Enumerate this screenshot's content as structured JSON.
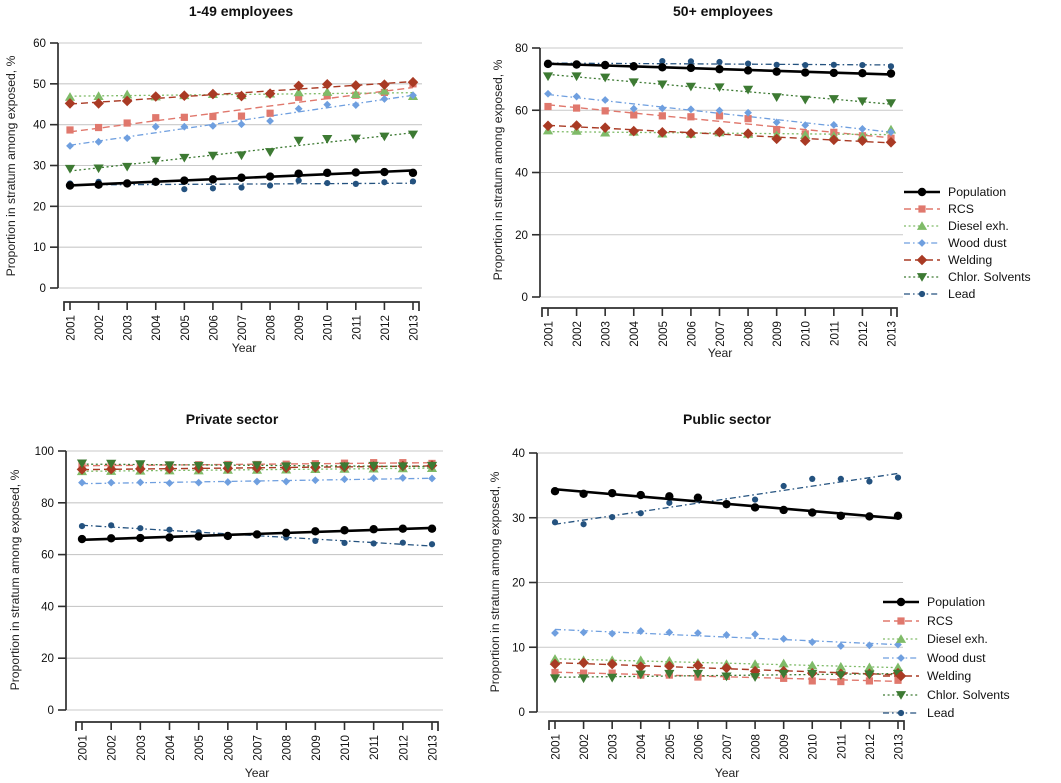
{
  "figure": {
    "ylabel": "Proportion in stratum among exposed, %",
    "xlabel": "Year",
    "colors": {
      "population": "#000000",
      "rcs": "#e0786d",
      "diesel": "#7fbb68",
      "wood_dust": "#6f9fdf",
      "welding": "#a93a24",
      "chlor_solvents": "#3d7a33",
      "lead": "#24527f",
      "gridline": "#c9c9c9",
      "axis": "#2e2e2e"
    },
    "series_styles": [
      {
        "name": "Population",
        "color": "#000000",
        "line": "solid",
        "marker": "circle-icon",
        "width": 2.6
      },
      {
        "name": "RCS",
        "color": "#e0786d",
        "line": "dashed",
        "marker": "square-icon",
        "width": 1.4
      },
      {
        "name": "Diesel exh.",
        "color": "#7fbb68",
        "line": "dotted",
        "marker": "triangle-up-icon",
        "width": 1.3
      },
      {
        "name": "Wood dust",
        "color": "#6f9fdf",
        "line": "dashdot",
        "marker": "small-diamond-icon",
        "width": 1.3
      },
      {
        "name": "Welding",
        "color": "#a93a24",
        "line": "dashed",
        "marker": "diamond-icon",
        "width": 1.4
      },
      {
        "name": "Chlor. Solvents",
        "color": "#3d7a33",
        "line": "dotted",
        "marker": "triangle-down-icon",
        "width": 1.3
      },
      {
        "name": "Lead",
        "color": "#24527f",
        "line": "dashdot",
        "marker": "small-circle-icon",
        "width": 1.3
      }
    ],
    "legend_items": [
      "Population",
      "RCS",
      "Diesel exh.",
      "Wood dust",
      "Welding",
      "Chlor. Solvents",
      "Lead"
    ]
  },
  "chart_data": [
    {
      "type": "line",
      "title": "1-49 employees",
      "xlabel": "Year",
      "ylabel": "Proportion in stratum among exposed, %",
      "ylim": [
        0,
        60
      ],
      "yticks": [
        0,
        10,
        20,
        30,
        40,
        50,
        60
      ],
      "x": [
        2001,
        2002,
        2003,
        2004,
        2005,
        2006,
        2007,
        2008,
        2009,
        2010,
        2011,
        2012,
        2013
      ],
      "grid": true,
      "legend_position": "none",
      "series": [
        {
          "name": "Population",
          "values": [
            25.1,
            25.3,
            25.6,
            26.0,
            26.3,
            26.6,
            27.0,
            27.3,
            28.0,
            28.2,
            28.3,
            28.4,
            28.2
          ]
        },
        {
          "name": "RCS",
          "values": [
            38.7,
            39.3,
            40.4,
            41.7,
            41.8,
            42.0,
            42.1,
            42.8,
            46.7,
            47.1,
            47.2,
            47.9,
            50.0
          ]
        },
        {
          "name": "Diesel exh.",
          "values": [
            46.8,
            47.0,
            47.4,
            46.9,
            47.2,
            47.5,
            47.2,
            47.6,
            47.9,
            48.0,
            47.5,
            48.3,
            47.0
          ]
        },
        {
          "name": "Wood dust",
          "values": [
            34.8,
            35.8,
            36.7,
            39.5,
            39.5,
            39.7,
            40.1,
            40.9,
            43.9,
            44.9,
            44.8,
            46.3,
            47.2
          ]
        },
        {
          "name": "Welding",
          "values": [
            45.2,
            45.2,
            45.8,
            46.9,
            47.1,
            47.5,
            47.0,
            47.6,
            49.5,
            49.9,
            49.6,
            49.8,
            50.4
          ]
        },
        {
          "name": "Chlor. Solvents",
          "values": [
            29.2,
            29.3,
            29.7,
            31.2,
            31.9,
            32.4,
            32.5,
            33.3,
            36.1,
            36.5,
            36.6,
            37.1,
            37.6
          ]
        },
        {
          "name": "Lead",
          "values": [
            25.6,
            26.0,
            25.6,
            25.9,
            24.2,
            24.4,
            24.6,
            25.1,
            26.3,
            25.7,
            25.5,
            25.9,
            26.1
          ]
        }
      ]
    },
    {
      "type": "line",
      "title": "50+ employees",
      "xlabel": "Year",
      "ylabel": "Proportion in stratum among exposed, %",
      "ylim": [
        0,
        80
      ],
      "yticks": [
        0,
        20,
        40,
        60,
        80
      ],
      "x": [
        2001,
        2002,
        2003,
        2004,
        2005,
        2006,
        2007,
        2008,
        2009,
        2010,
        2011,
        2012,
        2013
      ],
      "grid": true,
      "legend_position": "right",
      "series": [
        {
          "name": "Population",
          "values": [
            74.9,
            74.7,
            74.5,
            74.1,
            73.8,
            73.6,
            73.2,
            72.8,
            72.4,
            72.1,
            72.0,
            71.9,
            71.8
          ]
        },
        {
          "name": "RCS",
          "values": [
            61.2,
            60.7,
            59.8,
            58.5,
            58.2,
            57.9,
            58.2,
            57.3,
            53.8,
            52.4,
            52.9,
            51.8,
            51.0
          ]
        },
        {
          "name": "Diesel exh.",
          "values": [
            53.5,
            53.4,
            52.8,
            53.1,
            52.5,
            52.4,
            52.9,
            52.4,
            52.0,
            52.1,
            51.8,
            51.7,
            53.8
          ]
        },
        {
          "name": "Wood dust",
          "values": [
            65.3,
            64.4,
            63.3,
            60.5,
            60.6,
            60.3,
            59.9,
            59.2,
            56.1,
            55.2,
            55.3,
            54.0,
            53.0
          ]
        },
        {
          "name": "Welding",
          "values": [
            55.0,
            55.1,
            54.4,
            53.3,
            52.9,
            52.6,
            53.0,
            52.5,
            50.8,
            50.2,
            50.5,
            50.2,
            49.7
          ]
        },
        {
          "name": "Chlor. Solvents",
          "values": [
            70.9,
            70.9,
            70.5,
            69.0,
            68.3,
            67.6,
            67.4,
            66.6,
            64.2,
            63.4,
            63.6,
            62.9,
            62.3
          ]
        },
        {
          "name": "Lead",
          "values": [
            74.8,
            74.6,
            74.9,
            74.5,
            75.8,
            75.7,
            75.5,
            75.0,
            74.6,
            74.5,
            74.6,
            74.5,
            74.1
          ]
        }
      ]
    },
    {
      "type": "line",
      "title": "Private sector",
      "xlabel": "Year",
      "ylabel": "Proportion in stratum among exposed, %",
      "ylim": [
        0,
        100
      ],
      "yticks": [
        0,
        20,
        40,
        60,
        80,
        100
      ],
      "x": [
        2001,
        2002,
        2003,
        2004,
        2005,
        2006,
        2007,
        2008,
        2009,
        2010,
        2011,
        2012,
        2013
      ],
      "grid": true,
      "legend_position": "none",
      "series": [
        {
          "name": "Population",
          "values": [
            66.0,
            66.3,
            66.4,
            66.6,
            67.0,
            67.2,
            67.8,
            68.4,
            69.0,
            69.4,
            69.8,
            70.0,
            70.0
          ]
        },
        {
          "name": "RCS",
          "values": [
            94.3,
            94.4,
            94.5,
            94.6,
            94.7,
            94.8,
            94.8,
            94.9,
            95.1,
            95.3,
            95.5,
            95.5,
            95.2
          ]
        },
        {
          "name": "Diesel exh.",
          "values": [
            92.2,
            92.3,
            92.4,
            92.5,
            92.5,
            92.7,
            92.7,
            92.8,
            93.0,
            93.1,
            93.2,
            93.3,
            93.4
          ]
        },
        {
          "name": "Wood dust",
          "values": [
            87.8,
            87.8,
            87.9,
            87.6,
            87.8,
            88.0,
            88.2,
            88.2,
            88.7,
            89.1,
            89.5,
            89.6,
            89.4
          ]
        },
        {
          "name": "Welding",
          "values": [
            92.9,
            93.0,
            93.1,
            93.2,
            93.3,
            93.3,
            93.4,
            93.5,
            93.7,
            93.8,
            94.0,
            94.2,
            94.4
          ]
        },
        {
          "name": "Chlor. Solvents",
          "values": [
            95.2,
            95.1,
            94.9,
            94.5,
            94.3,
            94.3,
            94.5,
            94.1,
            94.2,
            94.1,
            94.3,
            94.1,
            94.3
          ]
        },
        {
          "name": "Lead",
          "values": [
            71.0,
            71.3,
            70.2,
            69.6,
            68.6,
            67.4,
            67.7,
            66.6,
            65.3,
            64.5,
            64.3,
            64.6,
            64.0
          ]
        }
      ]
    },
    {
      "type": "line",
      "title": "Public sector",
      "xlabel": "Year",
      "ylabel": "Proportion in stratum among exposed, %",
      "ylim": [
        0,
        40
      ],
      "yticks": [
        0,
        10,
        20,
        30,
        40
      ],
      "x": [
        2001,
        2002,
        2003,
        2004,
        2005,
        2006,
        2007,
        2008,
        2009,
        2010,
        2011,
        2012,
        2013
      ],
      "grid": true,
      "legend_position": "right",
      "series": [
        {
          "name": "Population",
          "values": [
            34.1,
            33.7,
            33.8,
            33.5,
            33.3,
            33.1,
            32.1,
            31.6,
            31.2,
            30.8,
            30.3,
            30.2,
            30.3
          ]
        },
        {
          "name": "RCS",
          "values": [
            6.1,
            6.0,
            6.0,
            5.7,
            5.7,
            5.4,
            5.5,
            5.9,
            5.2,
            4.8,
            4.7,
            4.8,
            4.9
          ]
        },
        {
          "name": "Diesel exh.",
          "values": [
            8.2,
            8.0,
            8.0,
            8.0,
            7.9,
            7.6,
            7.4,
            7.4,
            7.5,
            7.2,
            7.0,
            6.9,
            6.9
          ]
        },
        {
          "name": "Wood dust",
          "values": [
            12.2,
            12.3,
            12.1,
            12.5,
            12.3,
            12.2,
            11.9,
            12.0,
            11.3,
            10.8,
            10.2,
            10.3,
            10.4
          ]
        },
        {
          "name": "Welding",
          "values": [
            7.4,
            7.6,
            7.4,
            7.0,
            7.1,
            7.2,
            6.8,
            6.3,
            6.3,
            6.0,
            5.9,
            5.9,
            6.0
          ]
        },
        {
          "name": "Chlor. Solvents",
          "values": [
            5.2,
            5.2,
            5.3,
            5.8,
            5.9,
            5.9,
            5.5,
            5.4,
            5.9,
            5.9,
            5.7,
            5.8,
            5.9
          ]
        },
        {
          "name": "Lead",
          "values": [
            29.3,
            29.0,
            30.1,
            30.7,
            32.3,
            32.8,
            32.2,
            32.8,
            34.9,
            36.0,
            36.0,
            35.6,
            36.2
          ]
        }
      ]
    }
  ]
}
